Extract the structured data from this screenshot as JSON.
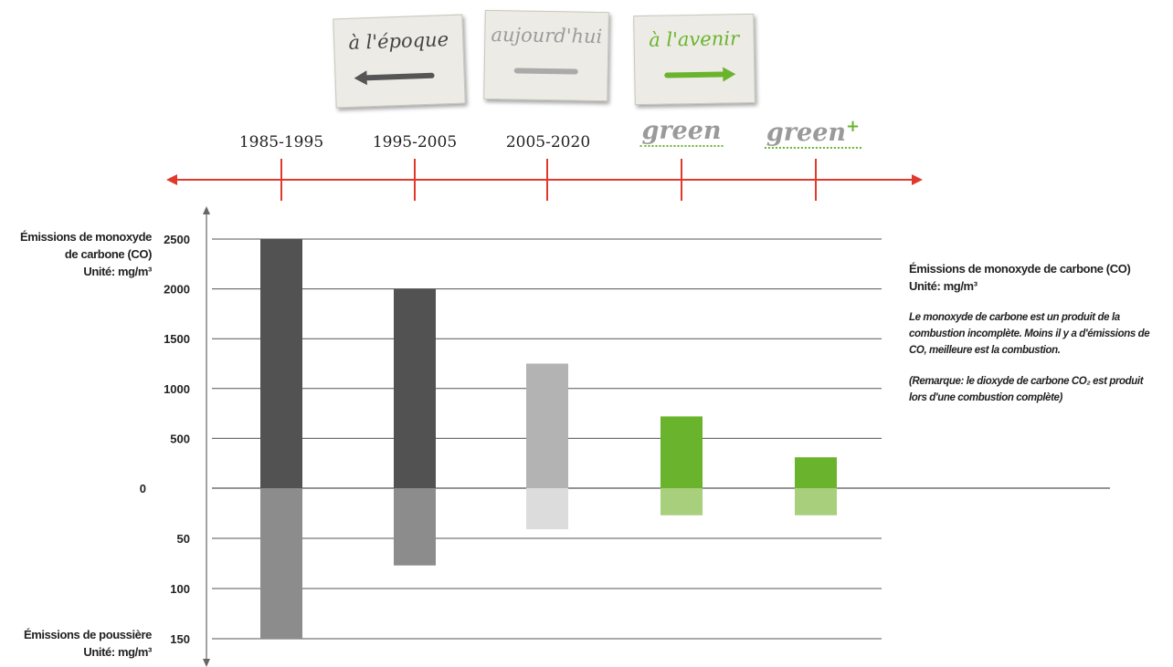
{
  "notes": [
    {
      "label": "à l'époque",
      "arrow": "arrow-left-icon"
    },
    {
      "label": "aujourd'hui",
      "arrow": "dash-icon"
    },
    {
      "label": "à l'avenir",
      "arrow": "arrow-right-icon"
    }
  ],
  "periods": [
    "1985-1995",
    "1995-2005",
    "2005-2020",
    "green",
    "green"
  ],
  "green_plus_symbol": "+",
  "labels": {
    "co_title_left": "Émissions de monoxyde de carbone (CO)",
    "co_unit": "Unité: mg/m³",
    "dust_title": "Émissions de poussière",
    "dust_unit": "Unité: mg/m³",
    "co_title_right": "Émissions de monoxyde de carbone (CO)",
    "co_unit_right": "Unité: mg/m³",
    "description": "Le monoxyde de carbone est un produit de la combustion incomplète. Moins il y a d'émissions de CO, meilleure est la combustion.",
    "remark": "(Remarque: le dioxyde de carbone CO₂ est produit lors d'une combustion complète)"
  },
  "colors": {
    "timeline": "#e0392b",
    "grid": "#555555",
    "co_bars": [
      "#525252",
      "#525252",
      "#b3b3b3",
      "#6ab42d",
      "#6ab42d"
    ],
    "dust_bars": [
      "#8c8c8c",
      "#8c8c8c",
      "#dcdcdc",
      "#a7cf7c",
      "#a7cf7c"
    ]
  },
  "chart_data": {
    "type": "bar",
    "categories": [
      "1985-1995",
      "1995-2005",
      "2005-2020",
      "green",
      "green+"
    ],
    "series": [
      {
        "values": [
          2500,
          2000,
          1250,
          720,
          310
        ]
      },
      {
        "values": [
          150,
          77,
          41,
          27,
          27
        ]
      }
    ],
    "y_top": {
      "ticks": [
        0,
        500,
        1000,
        1500,
        2000,
        2500
      ],
      "ylim": [
        0,
        2500
      ]
    },
    "y_bottom": {
      "ticks": [
        50,
        100,
        150
      ],
      "ylim": [
        0,
        150
      ],
      "inverted": true
    },
    "zero_label": "0",
    "grid": true
  }
}
